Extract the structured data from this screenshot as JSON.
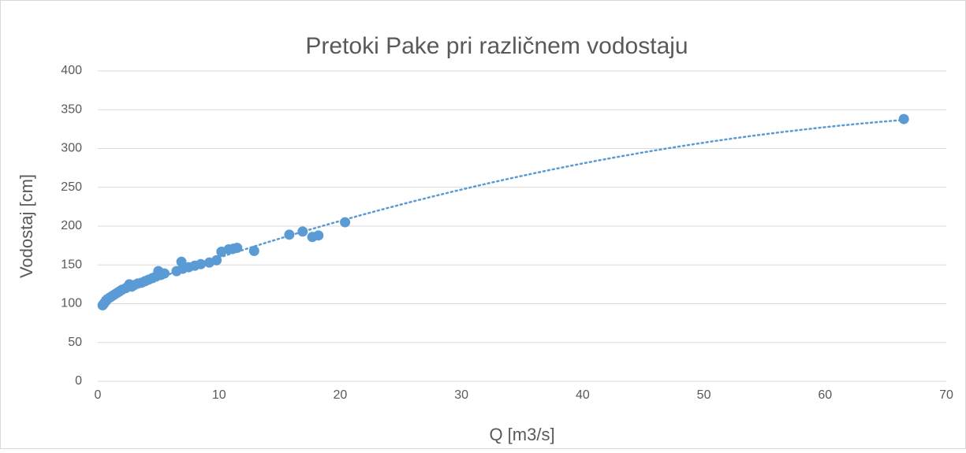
{
  "chart_data": {
    "type": "scatter",
    "title": "Pretoki Pake pri različnem vodostaju",
    "x_label": "Q [m3/s]",
    "y_label": "Vodostaj [cm]",
    "series": [
      {
        "color": "#5b9bd5",
        "x": [
          0.4,
          0.5,
          0.6,
          0.7,
          0.8,
          1.0,
          1.2,
          1.4,
          1.6,
          1.8,
          2.0,
          2.3,
          2.6,
          2.8,
          3.0,
          3.3,
          3.6,
          3.9,
          4.2,
          4.5,
          4.8,
          5.0,
          5.2,
          5.5,
          6.5,
          6.9,
          7.0,
          7.5,
          8.0,
          8.5,
          9.2,
          9.8,
          10.2,
          10.8,
          11.2,
          11.5,
          12.9,
          15.8,
          16.9,
          17.7,
          18.2,
          20.4,
          66.5
        ],
        "values": [
          98,
          100,
          102,
          104,
          106,
          108,
          110,
          112,
          114,
          116,
          118,
          120,
          125,
          122,
          124,
          126,
          127,
          129,
          131,
          133,
          135,
          142,
          137,
          139,
          142,
          154,
          145,
          147,
          149,
          151,
          153,
          156,
          167,
          170,
          171,
          172,
          168,
          189,
          193,
          186,
          188,
          205,
          338
        ]
      }
    ],
    "trendline": "polynomial",
    "xlim": [
      0,
      70
    ],
    "xticks": [
      0,
      10,
      20,
      30,
      40,
      50,
      60,
      70
    ],
    "ylim": [
      0,
      400
    ],
    "yticks": [
      0,
      50,
      100,
      150,
      200,
      250,
      300,
      350,
      400
    ],
    "grid": true
  }
}
